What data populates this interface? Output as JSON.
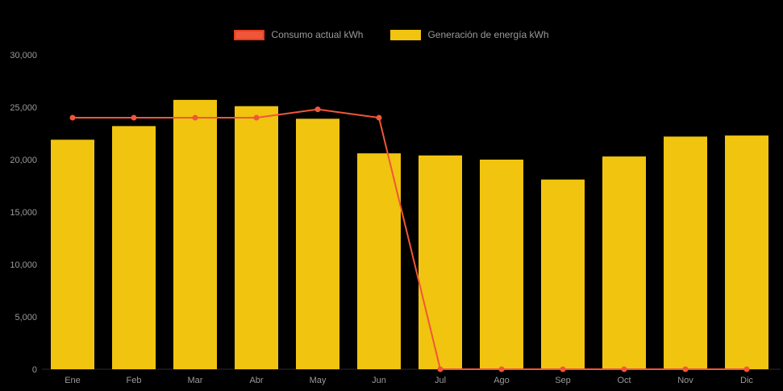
{
  "chart_data": {
    "type": "bar",
    "title": "",
    "categories": [
      "Ene",
      "Feb",
      "Mar",
      "Abr",
      "May",
      "Jun",
      "Jul",
      "Ago",
      "Sep",
      "Oct",
      "Nov",
      "Dic"
    ],
    "series": [
      {
        "name": "Consumo actual kWh",
        "type": "line",
        "color": "#F0563A",
        "swatch_border": "#E23E1F",
        "values": [
          24000,
          24000,
          24000,
          24000,
          24800,
          24000,
          0,
          0,
          0,
          0,
          0,
          0
        ]
      },
      {
        "name": "Generación de energía kWh",
        "type": "bar",
        "color": "#F1C40F",
        "values": [
          21900,
          23200,
          25700,
          25100,
          23900,
          20600,
          20400,
          20000,
          18100,
          20300,
          22200,
          22300
        ]
      }
    ],
    "xlabel": "",
    "ylabel": "",
    "ylim": [
      0,
      30000
    ],
    "ytick_step": 5000,
    "ytick_labels": [
      "0",
      "5,000",
      "10,000",
      "15,000",
      "20,000",
      "25,000",
      "30,000"
    ],
    "grid": false,
    "legend_position": "top",
    "background": "#000000",
    "text_color": "#9a9a9a"
  }
}
